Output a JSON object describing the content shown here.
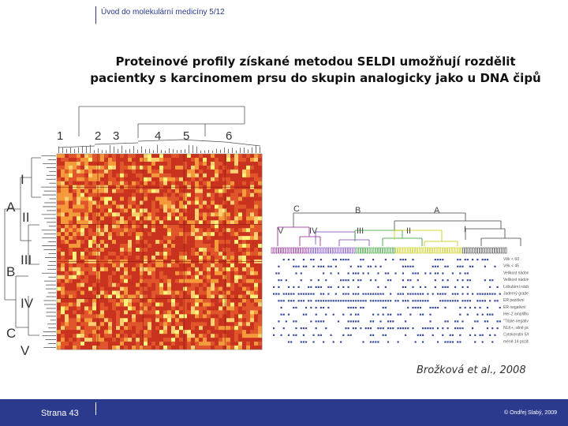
{
  "header": {
    "text": "Úvod do molekulární medicíny 5/12"
  },
  "title": {
    "line1": "Proteinové profily získané  metodou SELDI umožňují rozdělit",
    "line2": "pacientky s karcinomem prsu do skupin analogicky jako u DNA čipů"
  },
  "heatmap": {
    "column_clusters": [
      "1",
      "2",
      "3",
      "4",
      "5",
      "6"
    ],
    "row_groups": [
      "I",
      "II",
      "III",
      "IV",
      "V"
    ],
    "row_supergroups": [
      "A",
      "B",
      "C"
    ],
    "colors": {
      "dark": "#c8321e",
      "mid": "#e0552a",
      "light": "#f59a3a",
      "pale": "#fcd070",
      "yellow": "#fff27a"
    }
  },
  "dendrogram_right": {
    "supergroups": [
      "C",
      "B",
      "A"
    ],
    "groups": [
      "V",
      "IV",
      "III",
      "II",
      "I"
    ],
    "group_colors": [
      "#8a1f8a",
      "#7a3fbf",
      "#2a9a2a",
      "#c8c800",
      "#444444"
    ],
    "legend": [
      "Věk < 60",
      "Věk < 45",
      "Velikost nádoru < 20 mm",
      "Velikost nádoru > 30 mm",
      "Lobulární nádor",
      "Jaderný grade",
      "ER pozitivní",
      "ER negativní",
      "Her-2 amplifikace",
      "\"Triple-negativní\"",
      "NLK+; silně pozitivní",
      "Cytokeratin 5/6",
      "méně 14 pozitivní"
    ]
  },
  "citation": "Brožková et al., 2008",
  "footer": {
    "page": "Strana 43",
    "copyright": "© Ondřej Slabý, 2009"
  }
}
